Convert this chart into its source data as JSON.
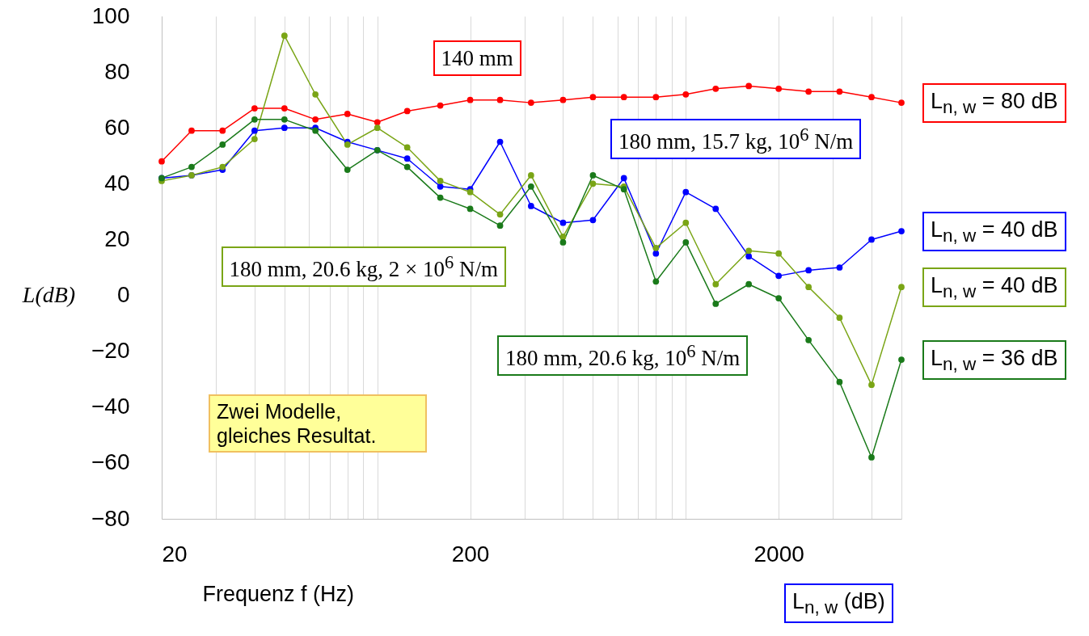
{
  "chart_data": {
    "type": "line",
    "xlabel": "Frequenz f (Hz)",
    "ylabel": "L(dB)",
    "log": "x",
    "grid": "x",
    "marker": "circle",
    "line_style": "solid",
    "x": [
      20,
      25,
      31.5,
      40,
      50,
      63,
      80,
      100,
      125,
      160,
      200,
      250,
      315,
      400,
      500,
      630,
      800,
      1000,
      1250,
      1600,
      2000,
      2500,
      3150,
      4000,
      5000
    ],
    "xlim": [
      20,
      5000
    ],
    "xticks": [
      20,
      {
        "value": 30,
        "label": null
      },
      {
        "value": 40,
        "label": null
      },
      {
        "value": 50,
        "label": null
      },
      {
        "value": 60,
        "label": null
      },
      {
        "value": 70,
        "label": null
      },
      {
        "value": 80,
        "label": null
      },
      {
        "value": 90,
        "label": null
      },
      {
        "value": 100,
        "label": null
      },
      200,
      {
        "value": 300,
        "label": null
      },
      {
        "value": 400,
        "label": null
      },
      {
        "value": 500,
        "label": null
      },
      {
        "value": 600,
        "label": null
      },
      {
        "value": 700,
        "label": null
      },
      {
        "value": 800,
        "label": null
      },
      {
        "value": 900,
        "label": null
      },
      {
        "value": 1000,
        "label": null
      },
      2000,
      {
        "value": 3000,
        "label": null
      },
      {
        "value": 4000,
        "label": null
      },
      {
        "value": 5000,
        "label": null
      }
    ],
    "ylim": [
      -80,
      100
    ],
    "yticks": [
      -80,
      -60,
      -40,
      -20,
      0,
      20,
      40,
      60,
      80,
      100
    ],
    "series": [
      {
        "name": "140 mm",
        "color": "#ff0000",
        "values": [
          48,
          59,
          59,
          67,
          67,
          63,
          65,
          62,
          66,
          68,
          70,
          70,
          69,
          70,
          71,
          71,
          71,
          72,
          74,
          75,
          74,
          73,
          73,
          71,
          69
        ]
      },
      {
        "name": "180 mm, 15.7 kg, 10$^{6}$ N/m",
        "color": "#0000ff",
        "values": [
          42,
          43,
          45,
          59,
          60,
          60,
          55,
          52,
          49,
          39,
          38,
          55,
          32,
          26,
          27,
          42,
          15,
          37,
          31,
          14,
          7,
          9,
          10,
          20,
          23
        ]
      },
      {
        "name": "180 mm, 20.6 kg, 2 × 10$^{6}$ N/m",
        "color": "#7aa516",
        "values": [
          41,
          43,
          46,
          56,
          93,
          72,
          54,
          60,
          53,
          41,
          37,
          29,
          43,
          21,
          40,
          39,
          17,
          26,
          4,
          16,
          15,
          3,
          -8,
          -32,
          3
        ]
      },
      {
        "name": "180 mm, 20.6 kg, 10$^{6}$ N/m",
        "color": "#1a7a1a",
        "values": [
          42,
          46,
          54,
          63,
          63,
          59,
          45,
          52,
          46,
          35,
          31,
          25,
          39,
          19,
          43,
          38,
          5,
          19,
          -3,
          4,
          -1,
          -16,
          -31,
          -58,
          -23
        ]
      }
    ],
    "annotations": [
      "L$_{n, w}$ = 80 dB",
      "L$_{n, w}$ = 40 dB",
      "L$_{n, w}$ = 40 dB",
      "L$_{n, w}$ = 36 dB",
      "Zwei Modelle, gleiches Resultat.",
      "L$_{n, w}$ (dB)"
    ]
  }
}
